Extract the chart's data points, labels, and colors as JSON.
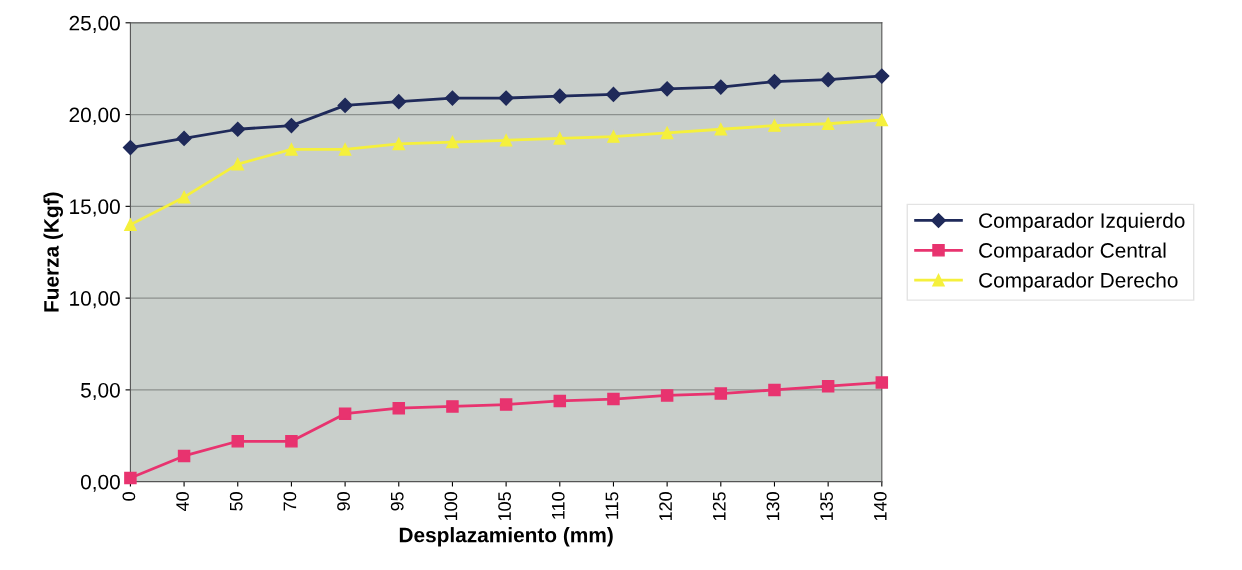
{
  "chart_data": {
    "type": "line",
    "xlabel": "Desplazamiento (mm)",
    "ylabel": "Fuerza (Kgf)",
    "categories": [
      "0",
      "40",
      "50",
      "70",
      "90",
      "95",
      "100",
      "105",
      "110",
      "115",
      "120",
      "125",
      "130",
      "135",
      "140"
    ],
    "series": [
      {
        "name": "Comparador Izquierdo",
        "color": "#1f2a5a",
        "marker": "diamond",
        "values": [
          18.2,
          18.7,
          19.2,
          19.4,
          20.5,
          20.7,
          20.9,
          20.9,
          21.0,
          21.1,
          21.4,
          21.5,
          21.8,
          21.9,
          22.1
        ]
      },
      {
        "name": "Comparador Central",
        "color": "#e8336f",
        "marker": "square",
        "values": [
          0.2,
          1.4,
          2.2,
          2.2,
          3.7,
          4.0,
          4.1,
          4.2,
          4.4,
          4.5,
          4.7,
          4.8,
          5.0,
          5.2,
          5.4
        ]
      },
      {
        "name": "Comparador Derecho",
        "color": "#f5f03c",
        "marker": "triangle",
        "values": [
          14.0,
          15.5,
          17.3,
          18.1,
          18.1,
          18.4,
          18.5,
          18.6,
          18.7,
          18.8,
          19.0,
          19.2,
          19.4,
          19.5,
          19.7
        ]
      }
    ],
    "ylim": [
      0,
      25
    ],
    "yticks": [
      {
        "value": 0,
        "label": "0,00"
      },
      {
        "value": 5,
        "label": "5,00"
      },
      {
        "value": 10,
        "label": "10,00"
      },
      {
        "value": 15,
        "label": "15,00"
      },
      {
        "value": 20,
        "label": "20,00"
      },
      {
        "value": 25,
        "label": "25,00"
      }
    ],
    "grid": "y",
    "legend": "right",
    "line_style": "solid"
  }
}
